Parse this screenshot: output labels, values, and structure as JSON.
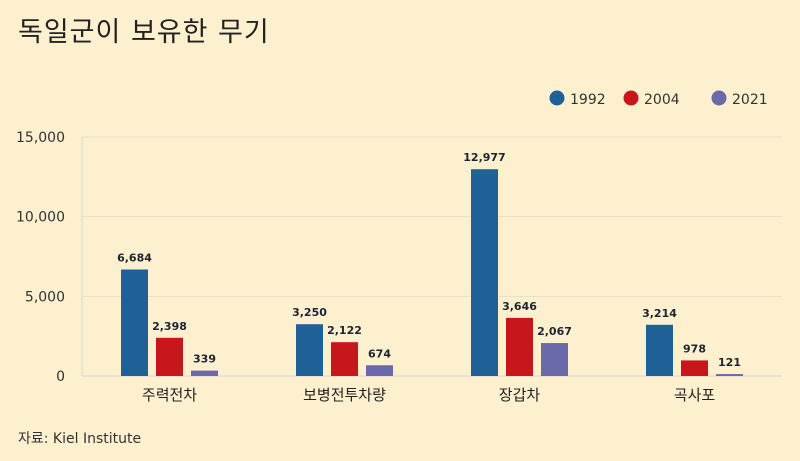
{
  "title": "독일군이 보유한 무기",
  "source": "자료: Kiel Institute",
  "chart_data": {
    "type": "bar",
    "categories": [
      "주력전차",
      "보병전투차량",
      "장갑차",
      "곡사포"
    ],
    "series": [
      {
        "name": "1992",
        "color": "#1f6096",
        "values": [
          6684,
          3250,
          12977,
          3214
        ]
      },
      {
        "name": "2004",
        "color": "#c8161d",
        "values": [
          2398,
          2122,
          3646,
          978
        ]
      },
      {
        "name": "2021",
        "color": "#6a6aaa",
        "values": [
          339,
          674,
          2067,
          121
        ]
      }
    ],
    "value_labels": [
      [
        "6,684",
        "3,250",
        "12,977",
        "3,214"
      ],
      [
        "2,398",
        "2,122",
        "3,646",
        "978"
      ],
      [
        "339",
        "674",
        "2,067",
        "121"
      ]
    ],
    "yticks": [
      0,
      5000,
      10000,
      15000
    ],
    "ytick_labels": [
      "0",
      "5,000",
      "10,000",
      "15,000"
    ],
    "ylim": [
      0,
      15000
    ],
    "grid": true,
    "legend_position": "top-right"
  }
}
